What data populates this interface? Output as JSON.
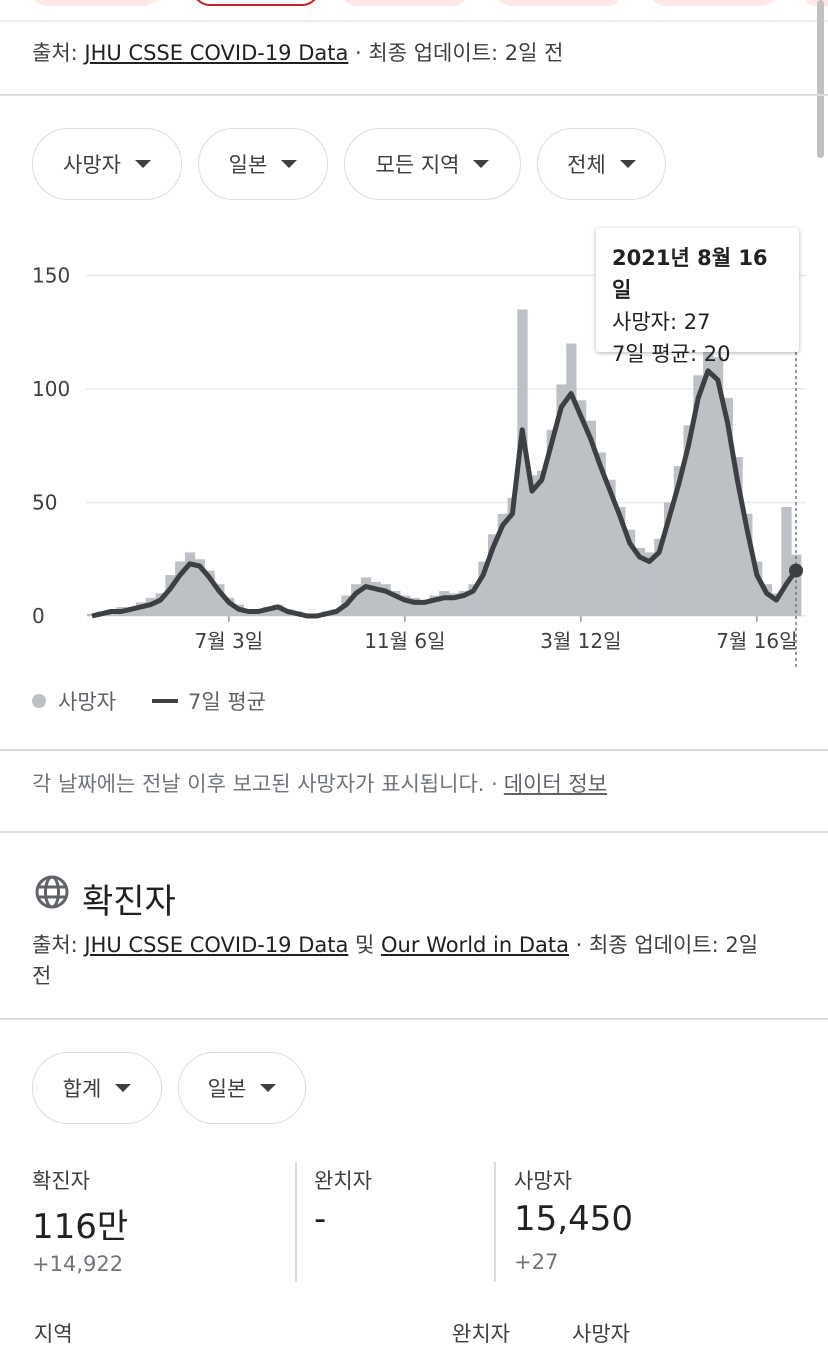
{
  "deaths_section": {
    "source_prefix": "출처: ",
    "source_link": "JHU CSSE COVID-19 Data",
    "update_text": " · 최종 업데이트: 2일 전",
    "filters": [
      {
        "label": "사망자"
      },
      {
        "label": "일본"
      },
      {
        "label": "모든 지역"
      },
      {
        "label": "전체"
      }
    ],
    "tooltip": {
      "date": "2021년 8월 16일",
      "deaths": "사망자: 27",
      "avg": "7일 평균: 20"
    },
    "legend": {
      "bars": "사망자",
      "line": "7일 평균"
    },
    "note": "각 날짜에는 전날 이후 보고된 사망자가 표시됩니다.  ·",
    "data_info_link": "데이터 정보"
  },
  "chart_data": {
    "type": "bar",
    "x_ticks": [
      "7월 3일",
      "11월 6일",
      "3월 12일",
      "7월 16일"
    ],
    "y_ticks": [
      "0",
      "50",
      "100",
      "150"
    ],
    "ylim": [
      0,
      170
    ],
    "grid": true,
    "series": [
      {
        "name": "7일 평균",
        "type": "line",
        "color": "#3c4043",
        "values": [
          0,
          1,
          2,
          2,
          3,
          4,
          5,
          7,
          12,
          18,
          23,
          22,
          17,
          11,
          6,
          3,
          2,
          2,
          3,
          4,
          2,
          1,
          0,
          0,
          1,
          2,
          5,
          10,
          13,
          12,
          11,
          9,
          7,
          6,
          6,
          7,
          8,
          8,
          9,
          11,
          18,
          30,
          40,
          45,
          82,
          55,
          60,
          76,
          92,
          98,
          88,
          78,
          66,
          55,
          44,
          32,
          26,
          24,
          28,
          43,
          58,
          75,
          96,
          108,
          104,
          85,
          60,
          38,
          18,
          10,
          7,
          14,
          20
        ],
        "values_note": "approximate, read from the chart"
      },
      {
        "name": "사망자",
        "type": "bar",
        "color": "#bdc1c6",
        "values": [
          1,
          2,
          3,
          4,
          3,
          6,
          8,
          10,
          18,
          24,
          28,
          25,
          20,
          14,
          8,
          5,
          3,
          3,
          4,
          5,
          3,
          2,
          1,
          1,
          2,
          3,
          9,
          14,
          17,
          15,
          14,
          11,
          9,
          8,
          7,
          9,
          11,
          10,
          11,
          14,
          24,
          36,
          45,
          52,
          135,
          62,
          64,
          82,
          102,
          120,
          95,
          86,
          72,
          60,
          48,
          38,
          30,
          28,
          34,
          50,
          66,
          84,
          106,
          120,
          114,
          96,
          70,
          45,
          24,
          14,
          10,
          48,
          27
        ],
        "values_note": "approximate, read from the chart"
      }
    ]
  },
  "cases_section": {
    "title": "확진자",
    "source_prefix": "출처: ",
    "source_link1": "JHU CSSE COVID-19 Data",
    "source_mid": " 및 ",
    "source_link2": "Our World in Data",
    "update_text": " · 최종 업데이트: 2일",
    "update_text2": "전",
    "filters": [
      {
        "label": "합계"
      },
      {
        "label": "일본"
      }
    ],
    "stats": [
      {
        "label": "확진자",
        "value": "116만",
        "delta": "+14,922"
      },
      {
        "label": "완치자",
        "value": "-",
        "delta": ""
      },
      {
        "label": "사망자",
        "value": "15,450",
        "delta": "+27"
      }
    ],
    "table_headers": [
      "지역",
      "완치자",
      "사망자"
    ]
  }
}
